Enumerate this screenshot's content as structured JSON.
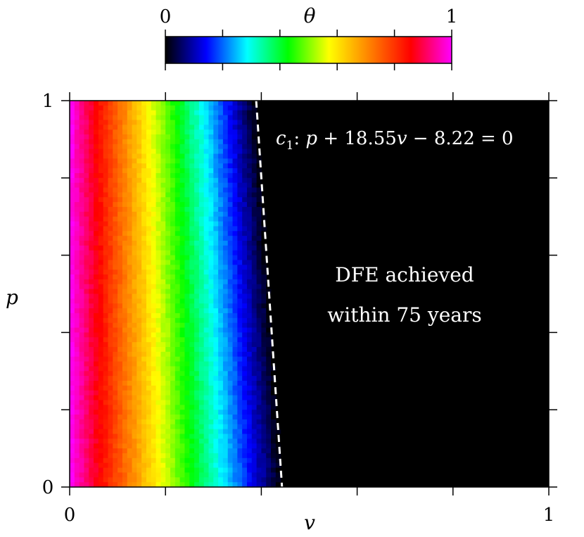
{
  "chart_data": {
    "type": "heatmap",
    "xlabel": "v",
    "ylabel": "p",
    "xlim": [
      0,
      1
    ],
    "ylim": [
      0,
      1
    ],
    "x_ticks": [
      "0",
      "1"
    ],
    "y_ticks": [
      "0",
      "1"
    ],
    "colorbar": {
      "label": "θ",
      "range": [
        0,
        1
      ],
      "tick_labels": [
        "0",
        "1"
      ],
      "colors": [
        "#000000",
        "#0000ff",
        "#00ffff",
        "#00ff00",
        "#ffff00",
        "#ff8000",
        "#ff0000",
        "#ff00ff"
      ]
    },
    "field": {
      "description_values": "theta decreases from 1 at v=0 to 0 at the boundary line c1",
      "theta_at_v0": 1,
      "theta_at_boundary": 0
    },
    "boundary_line": {
      "coefficients": {
        "p": 1,
        "v": 18.55,
        "const": -8.22
      },
      "style": "dashed",
      "color": "#ffffff"
    },
    "annotations": {
      "line_label_name": "c",
      "line_label_sub": "1",
      "line_label_rest_p": "p",
      "line_label_plus": " + 18.55",
      "line_label_v": "v",
      "line_label_tail": " − 8.22 = 0",
      "region_line1": "DFE achieved",
      "region_line2": "within 75 years"
    }
  }
}
